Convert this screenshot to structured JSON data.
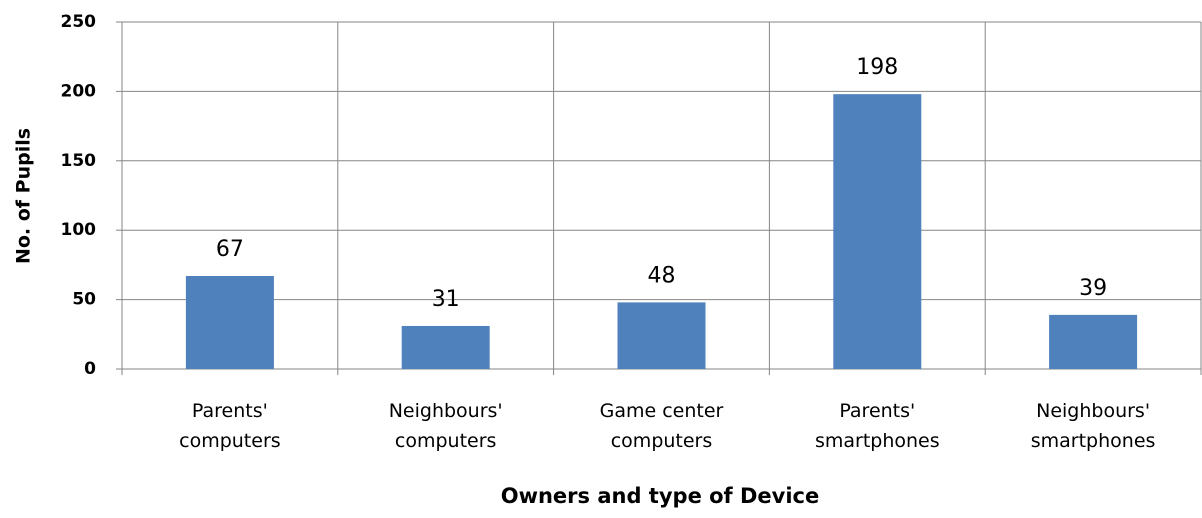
{
  "chart_data": {
    "type": "bar",
    "x_label": "Owners and type of Device",
    "y_label": "No. of Pupils",
    "categories": [
      "Parents' computers",
      "Neighbours' computers",
      "Game center computers",
      "Parents' smartphones",
      "Neighbours' smartphones"
    ],
    "values": [
      67,
      31,
      48,
      198,
      39
    ],
    "color": "#4f81bd",
    "ylim": [
      0,
      250
    ],
    "yticks": [
      0,
      50,
      100,
      150,
      200,
      250
    ],
    "grid": true
  }
}
